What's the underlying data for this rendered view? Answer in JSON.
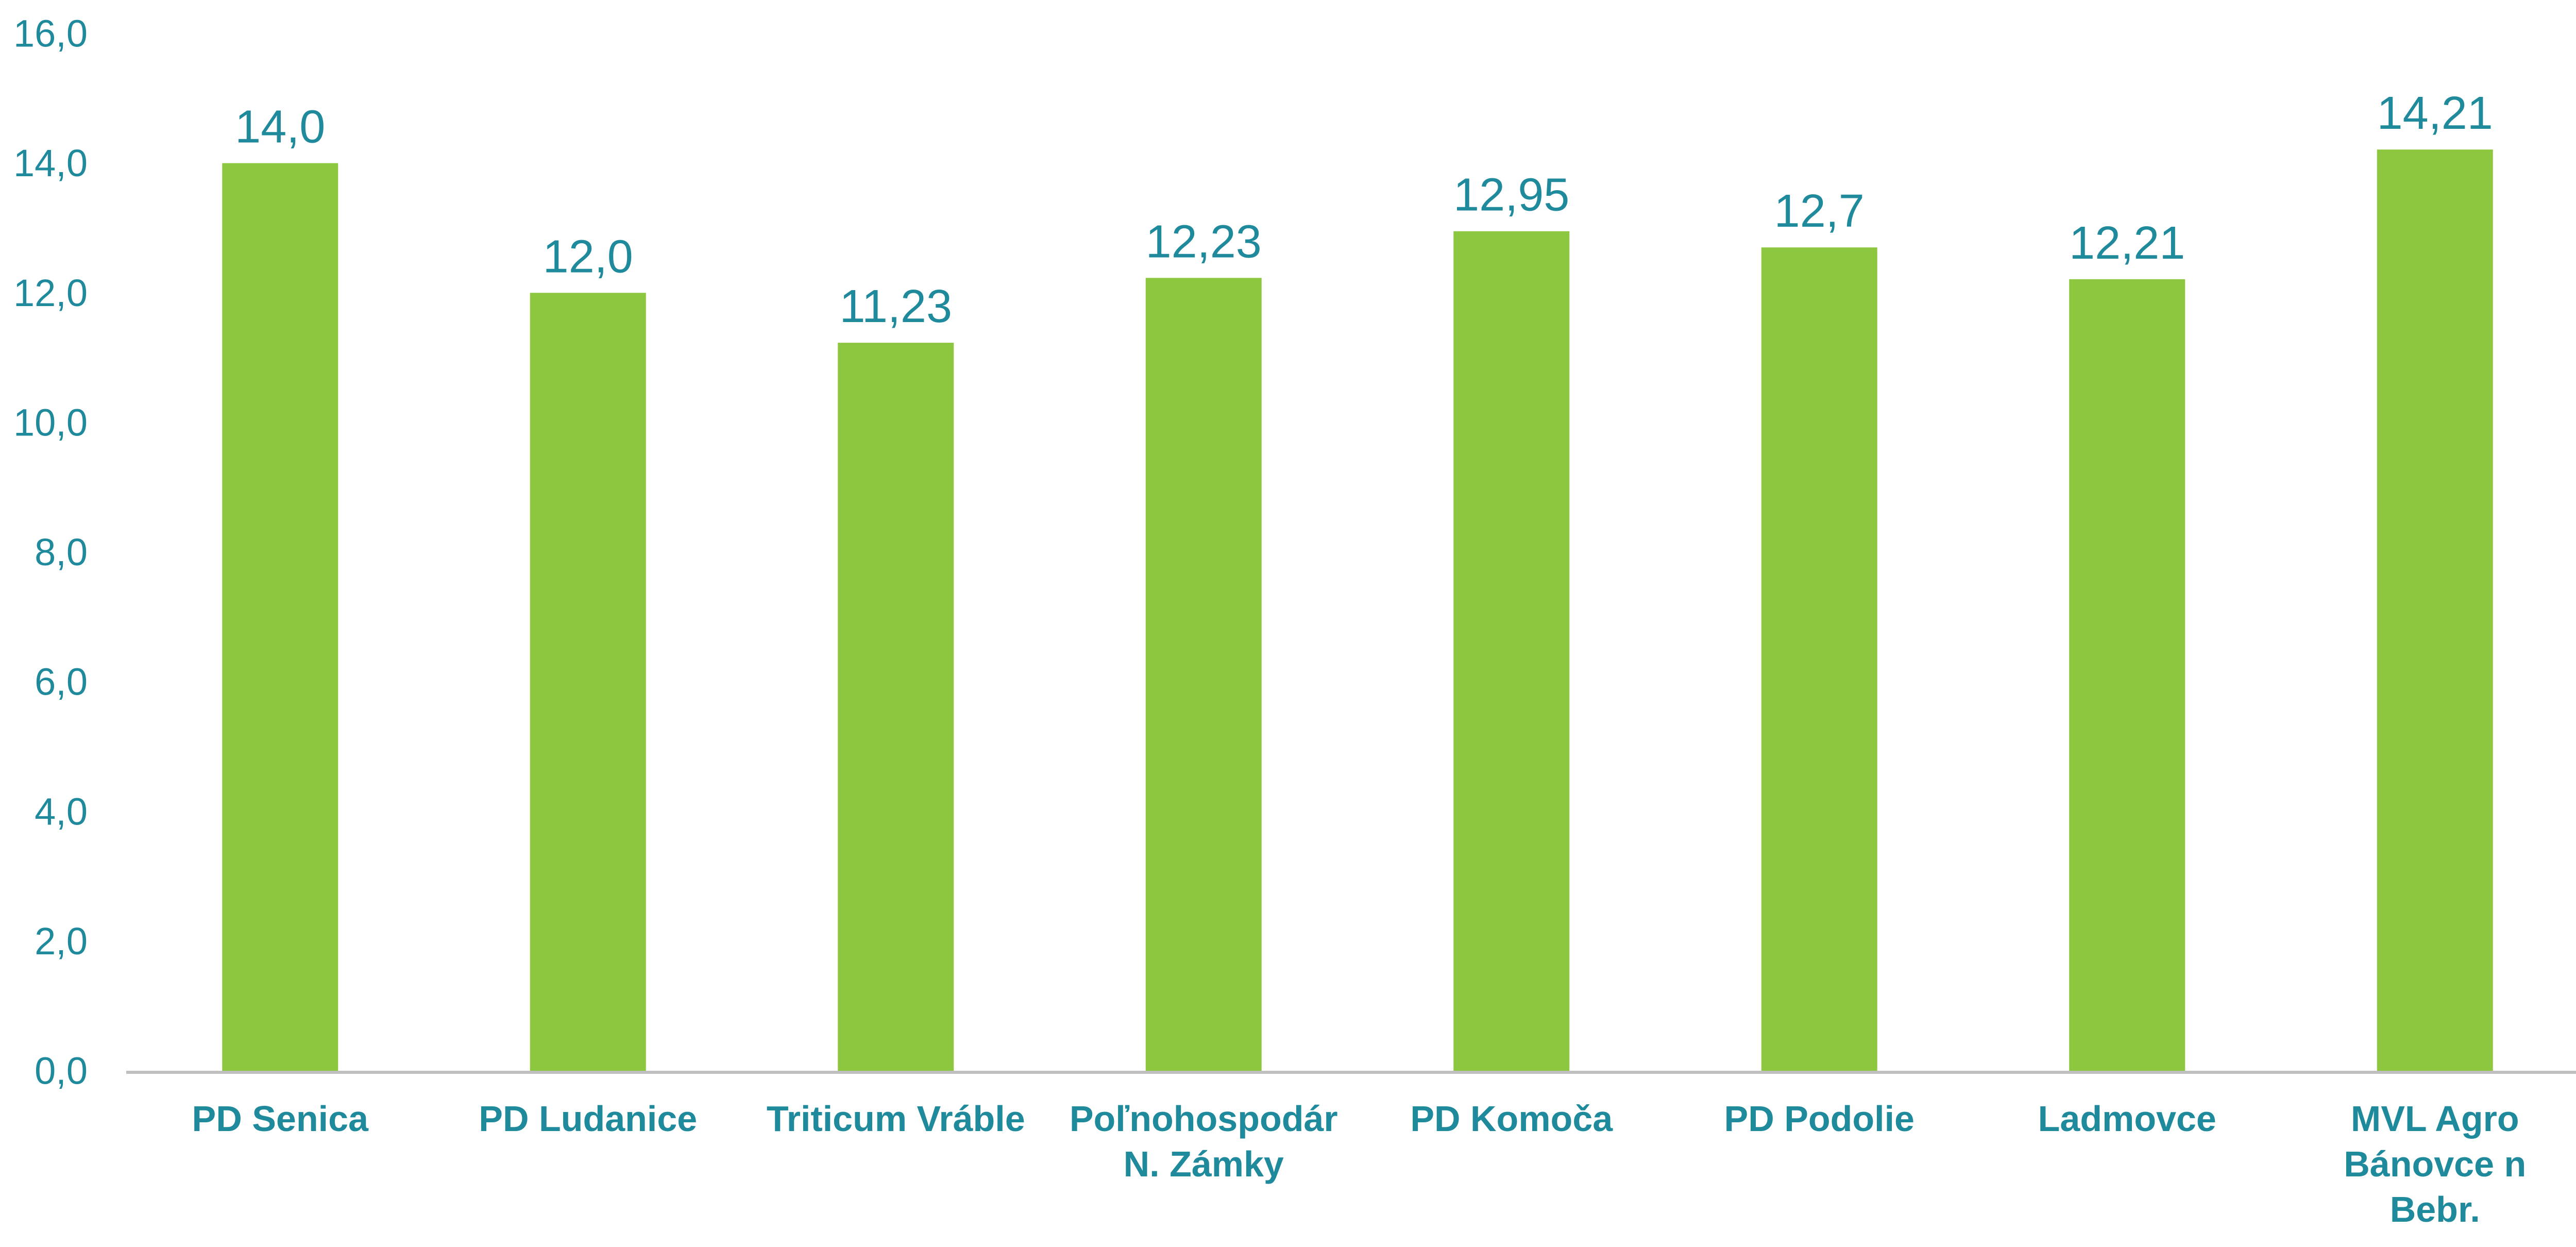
{
  "chart_data": {
    "type": "bar",
    "title": "",
    "xlabel": "",
    "ylabel": "",
    "categories": [
      [
        "PD Senica"
      ],
      [
        "PD Ludanice"
      ],
      [
        "Triticum Vráble"
      ],
      [
        "Poľnohospodár",
        "N. Zámky"
      ],
      [
        "PD Komoča"
      ],
      [
        "PD Podolie"
      ],
      [
        "Ladmovce"
      ],
      [
        "MVL Agro",
        "Bánovce n",
        "Bebr."
      ]
    ],
    "values": [
      14.0,
      12.0,
      11.23,
      12.23,
      12.95,
      12.7,
      12.21,
      14.21
    ],
    "value_labels": [
      "14,0",
      "12,0",
      "11,23",
      "12,23",
      "12,95",
      "12,7",
      "12,21",
      "14,21"
    ],
    "ylim": [
      0,
      16
    ],
    "yticks": [
      0,
      2,
      4,
      6,
      8,
      10,
      12,
      14,
      16
    ],
    "ytick_labels": [
      "0,0",
      "2,0",
      "4,0",
      "6,0",
      "8,0",
      "10,0",
      "12,0",
      "14,0",
      "16,0"
    ],
    "grid": false,
    "legend": "none",
    "colors": {
      "bar": "#8DC63F",
      "text": "#1F8A9B",
      "axis": "#BFBFBF"
    }
  }
}
